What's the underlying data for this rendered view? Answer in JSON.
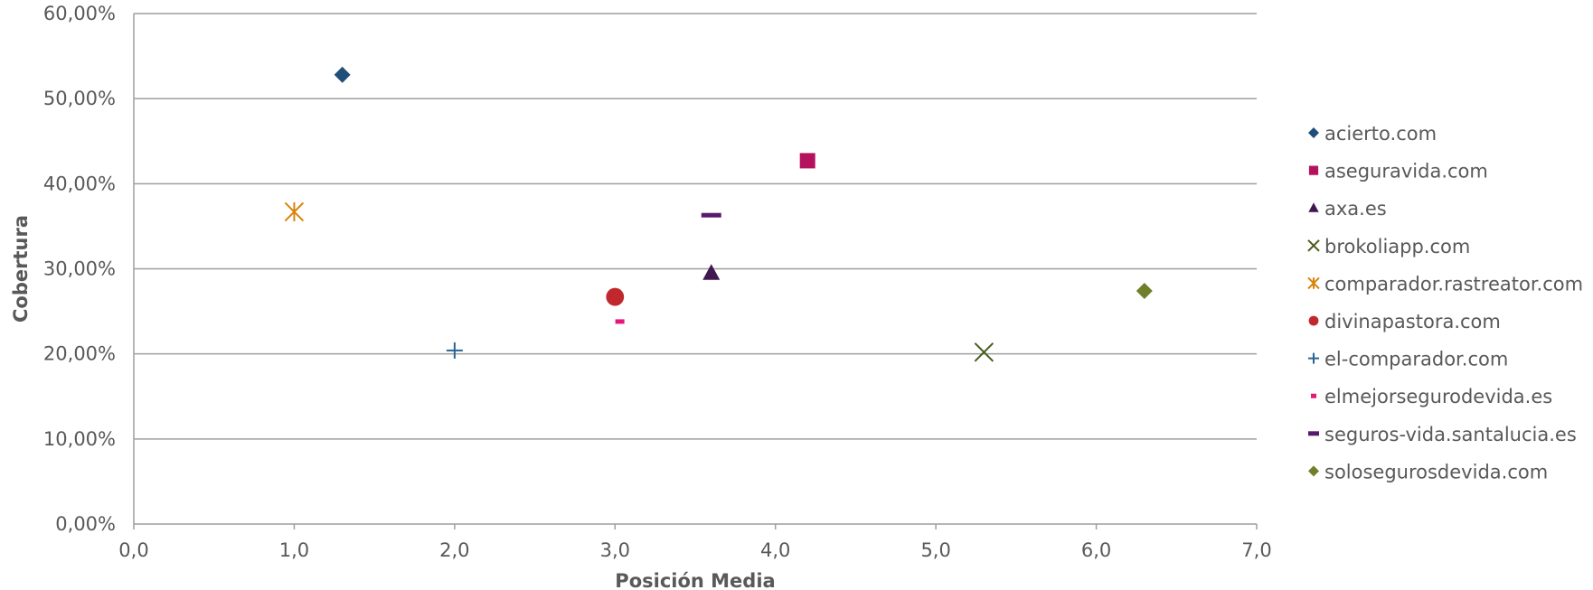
{
  "chart_data": {
    "type": "scatter",
    "title": "",
    "xlabel": "Posición Media",
    "ylabel": "Cobertura",
    "xlim": [
      0,
      7
    ],
    "ylim": [
      0,
      0.6
    ],
    "x_ticks": [
      "0,0",
      "1,0",
      "2,0",
      "3,0",
      "4,0",
      "5,0",
      "6,0",
      "7,0"
    ],
    "y_ticks": [
      "0,00%",
      "10,00%",
      "20,00%",
      "30,00%",
      "40,00%",
      "50,00%",
      "60,00%"
    ],
    "grid": "horizontal",
    "legend_position": "right",
    "series": [
      {
        "name": "acierto.com",
        "marker": "diamond",
        "color": "#1f4e79",
        "x": 1.3,
        "y": 0.528
      },
      {
        "name": "aseguravida.com",
        "marker": "square",
        "color": "#b5125e",
        "x": 4.2,
        "y": 0.427
      },
      {
        "name": "axa.es",
        "marker": "triangle",
        "color": "#40174f",
        "x": 3.6,
        "y": 0.295
      },
      {
        "name": "brokoliapp.com",
        "marker": "x",
        "color": "#4a5a1c",
        "x": 5.3,
        "y": 0.202
      },
      {
        "name": "comparador.rastreator.com",
        "marker": "star",
        "color": "#d9830a",
        "x": 1.0,
        "y": 0.367
      },
      {
        "name": "divinapastora.com",
        "marker": "circle",
        "color": "#c0282d",
        "x": 3.0,
        "y": 0.267
      },
      {
        "name": "el-comparador.com",
        "marker": "plus",
        "color": "#2a6496",
        "x": 2.0,
        "y": 0.204
      },
      {
        "name": "elmejorsegurodevida.es",
        "marker": "dash-short",
        "color": "#e6177a",
        "x": 3.03,
        "y": 0.238
      },
      {
        "name": "seguros-vida.santalucia.es",
        "marker": "dash-long",
        "color": "#5a1a6b",
        "x": 3.6,
        "y": 0.363
      },
      {
        "name": "solosegurosdevida.com",
        "marker": "diamond",
        "color": "#6f7f2a",
        "x": 6.3,
        "y": 0.274
      }
    ]
  }
}
